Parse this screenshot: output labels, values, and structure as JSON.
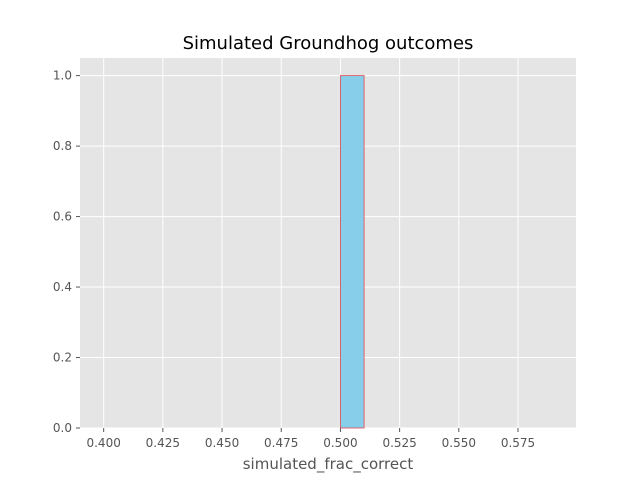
{
  "chart_data": {
    "type": "bar",
    "title": "Simulated Groundhog outcomes",
    "xlabel": "simulated_frac_correct",
    "ylabel": "",
    "xlim": [
      0.39,
      0.5995
    ],
    "ylim": [
      0,
      1.05
    ],
    "x_ticks": [
      0.4,
      0.425,
      0.45,
      0.475,
      0.5,
      0.525,
      0.55,
      0.575
    ],
    "x_tick_labels": [
      "0.400",
      "0.425",
      "0.450",
      "0.475",
      "0.500",
      "0.525",
      "0.550",
      "0.575"
    ],
    "y_ticks": [
      0.0,
      0.2,
      0.4,
      0.6,
      0.8,
      1.0
    ],
    "y_tick_labels": [
      "0.0",
      "0.2",
      "0.4",
      "0.6",
      "0.8",
      "1.0"
    ],
    "bins": [
      {
        "x_start": 0.5,
        "x_end": 0.51,
        "value": 1.0
      }
    ],
    "grid": true,
    "legend": "none",
    "colors": {
      "bar_fill": "#87ceeb",
      "bar_edge": "#e5484d",
      "plot_bg": "#e5e5e5",
      "grid": "#ffffff"
    }
  }
}
